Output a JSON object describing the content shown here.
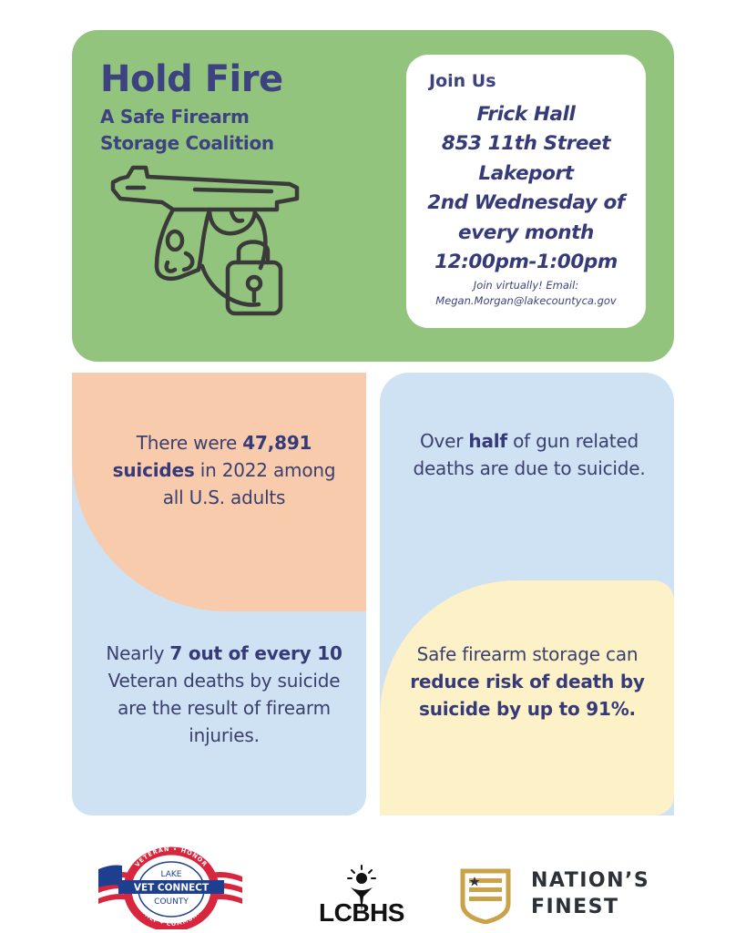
{
  "header": {
    "title": "Hold Fire",
    "subtitle": "A Safe Firearm Storage Coalition",
    "icon": "locked-handgun-icon"
  },
  "join": {
    "heading": "Join Us",
    "lines": [
      "Frick Hall",
      "853 11th Street",
      "Lakeport",
      "2nd Wednesday of",
      "every month",
      "12:00pm-1:00pm"
    ],
    "virtual_label": "Join virtually! Email:",
    "email": "Megan.Morgan@lakecountyca.gov"
  },
  "stats": [
    {
      "pre": "There were ",
      "bold": "47,891 suicides",
      "post": " in 2022 among all U.S. adults"
    },
    {
      "pre": "Over ",
      "bold": "half",
      "post": " of gun related deaths are due to suicide."
    },
    {
      "pre": "Nearly ",
      "bold": "7 out of every 10",
      "post": " Veteran deaths by suicide are the result of firearm injuries."
    },
    {
      "pre": "Safe firearm storage can ",
      "bold": "reduce risk of death by suicide by up to 91%.",
      "post": ""
    }
  ],
  "logos": {
    "vet_connect": {
      "ring_top": "VETERAN • HONOR",
      "ring_bottom": "FAMILY • COMMUNITY",
      "lake": "LAKE",
      "name": "VET CONNECT",
      "county": "COUNTY"
    },
    "lcbhs": "LCBHS",
    "nations_finest": [
      "NATION’S",
      "FINEST"
    ]
  },
  "colors": {
    "green_panel": "#93c47d",
    "peach": "#f8cbad",
    "light_blue": "#cfe2f3",
    "cream": "#fdf2c7",
    "navy_text": "#3d4280"
  }
}
